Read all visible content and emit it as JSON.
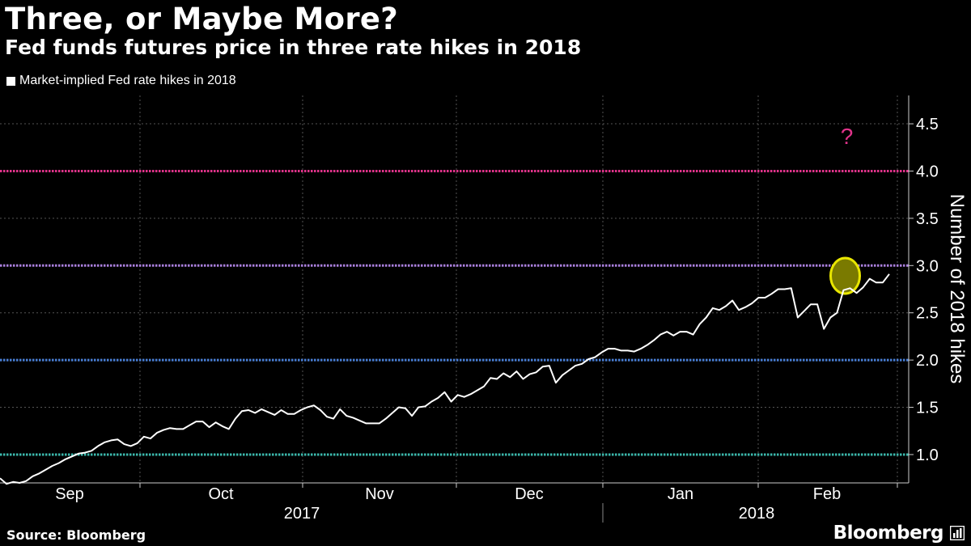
{
  "header": {
    "title": "Three, or Maybe More?",
    "subtitle": "Fed funds futures price in three rate hikes in 2018"
  },
  "footer": {
    "source": "Source: Bloomberg",
    "brand": "Bloomberg"
  },
  "colors": {
    "background": "#000000",
    "series": "#ffffff",
    "hike4": "#e0338a",
    "hike3": "#a97fdc",
    "hike2": "#4a7fd6",
    "hike1": "#3bb9ad",
    "question": "#e0338a",
    "highlight": "#e8e600",
    "grid": "#555555"
  },
  "chart_data": {
    "type": "line",
    "title": "Three, or Maybe More?",
    "subtitle": "Fed funds futures price in three rate hikes in 2018",
    "legend": [
      "Market-implied Fed rate hikes in 2018"
    ],
    "legend_position": "top-left",
    "ylabel": "Number of 2018 hikes",
    "yaxis_side": "right",
    "ylim": [
      0.7,
      4.8
    ],
    "yticks": [
      "1.0",
      "1.5",
      "2.0",
      "2.5",
      "3.0",
      "3.5",
      "4.0",
      "4.5"
    ],
    "ytick_values": [
      1.0,
      1.5,
      2.0,
      2.5,
      3.0,
      3.5,
      4.0,
      4.5
    ],
    "month_labels": [
      "Sep",
      "Oct",
      "Nov",
      "Dec",
      "Jan",
      "Feb"
    ],
    "year_labels": [
      "2017",
      "2018"
    ],
    "grid": true,
    "reference_lines": [
      {
        "value": 4.0,
        "color_key": "hike4"
      },
      {
        "value": 3.0,
        "color_key": "hike3"
      },
      {
        "value": 2.0,
        "color_key": "hike2"
      },
      {
        "value": 1.0,
        "color_key": "hike1"
      }
    ],
    "annotations": [
      {
        "text": "?",
        "x_index": 131,
        "y": 4.37,
        "color_key": "question"
      }
    ],
    "highlight": {
      "x_index": 130,
      "y": 2.9
    },
    "series": [
      {
        "name": "Market-implied Fed rate hikes in 2018",
        "values": [
          0.75,
          0.69,
          0.71,
          0.7,
          0.72,
          0.77,
          0.8,
          0.84,
          0.88,
          0.91,
          0.95,
          0.98,
          1.01,
          1.02,
          1.04,
          1.09,
          1.13,
          1.15,
          1.16,
          1.11,
          1.09,
          1.12,
          1.19,
          1.17,
          1.23,
          1.26,
          1.28,
          1.27,
          1.27,
          1.31,
          1.35,
          1.35,
          1.29,
          1.34,
          1.3,
          1.27,
          1.38,
          1.46,
          1.47,
          1.44,
          1.48,
          1.45,
          1.42,
          1.47,
          1.43,
          1.43,
          1.47,
          1.5,
          1.52,
          1.47,
          1.4,
          1.38,
          1.48,
          1.41,
          1.39,
          1.36,
          1.33,
          1.33,
          1.33,
          1.38,
          1.44,
          1.5,
          1.49,
          1.41,
          1.5,
          1.51,
          1.56,
          1.6,
          1.66,
          1.56,
          1.63,
          1.61,
          1.64,
          1.68,
          1.72,
          1.81,
          1.8,
          1.86,
          1.82,
          1.88,
          1.8,
          1.85,
          1.87,
          1.93,
          1.94,
          1.76,
          1.84,
          1.89,
          1.94,
          1.96,
          2.01,
          2.03,
          2.08,
          2.12,
          2.12,
          2.1,
          2.1,
          2.09,
          2.12,
          2.16,
          2.21,
          2.27,
          2.3,
          2.26,
          2.3,
          2.3,
          2.27,
          2.38,
          2.45,
          2.55,
          2.53,
          2.57,
          2.63,
          2.53,
          2.56,
          2.6,
          2.66,
          2.66,
          2.7,
          2.75,
          2.75,
          2.76,
          2.45,
          2.52,
          2.59,
          2.59,
          2.33,
          2.45,
          2.5,
          2.74,
          2.76,
          2.71,
          2.77,
          2.86,
          2.82,
          2.82,
          2.91
        ]
      }
    ]
  }
}
